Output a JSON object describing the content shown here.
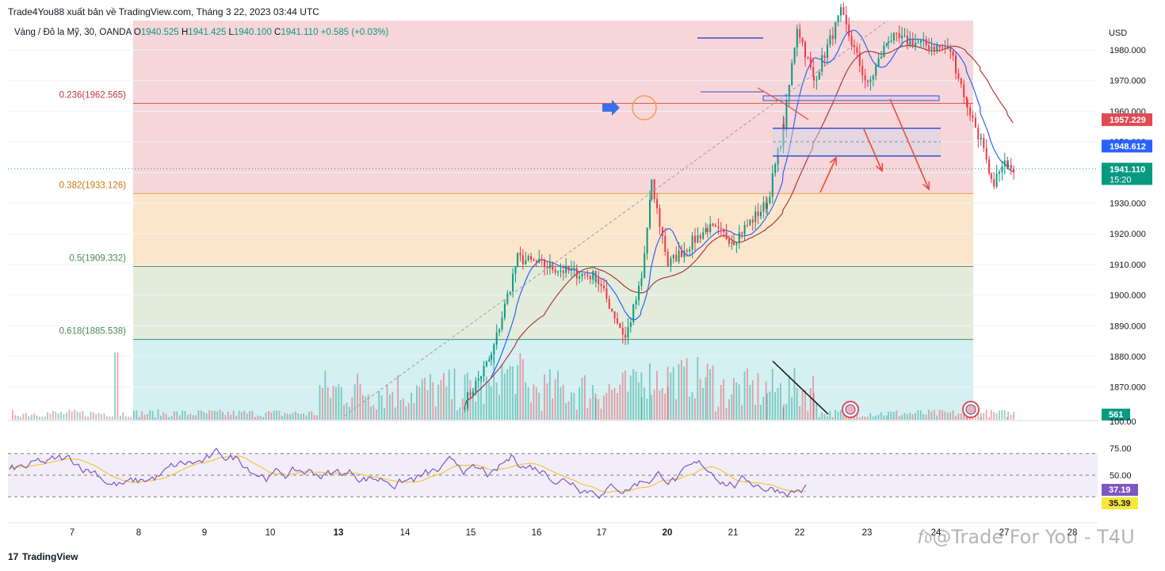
{
  "header": {
    "publisher": "Trade4You88 xuất bản về TradingView.com, Tháng 3 22, 2023 03:44 UTC",
    "symbol": "Vàng / Đô la Mỹ, 30, OANDA",
    "o_label": "O",
    "o": "1940.525",
    "h_label": "H",
    "h": "1941.425",
    "l_label": "L",
    "l": "1940.100",
    "c_label": "C",
    "c": "1941.110",
    "change": "+0.585 (+0.03%)"
  },
  "brand": {
    "logo": "17",
    "name": "TradingView"
  },
  "watermark": "𝑓𝔡@Trade For You - T4U",
  "colors": {
    "up": "#089981",
    "down": "#f23645",
    "ma_fast": "#2962ff",
    "ma_slow": "#b2383b",
    "rsi": "#7e57c2",
    "rsi_ma": "#f5c542",
    "arrow": "#f04b3c",
    "line_blue": "#3750d8"
  },
  "chart_data": [
    {
      "type": "candlestick",
      "instrument": "XAU/USD 30m OANDA",
      "ylabel": "USD",
      "ylim": [
        1860,
        1990
      ],
      "y_ticks": [
        1870,
        1880,
        1890,
        1900,
        1910,
        1920,
        1930,
        1940,
        1950,
        1960,
        1970,
        1980
      ],
      "y_tick_labels": [
        "1870.000",
        "1880.000",
        "1890.000",
        "1900.000",
        "1910.000",
        "1920.000",
        "1930.000",
        "1940.000",
        "1950.000",
        "1960.000",
        "1970.000",
        "1980.000"
      ],
      "x_ticks": [
        {
          "label": "7",
          "day": 7
        },
        {
          "label": "8",
          "day": 8
        },
        {
          "label": "9",
          "day": 9
        },
        {
          "label": "10",
          "day": 10
        },
        {
          "label": "13",
          "day": 13
        },
        {
          "label": "14",
          "day": 14
        },
        {
          "label": "15",
          "day": 15
        },
        {
          "label": "16",
          "day": 16
        },
        {
          "label": "17",
          "day": 17
        },
        {
          "label": "20",
          "day": 20
        },
        {
          "label": "21",
          "day": 21
        },
        {
          "label": "22",
          "day": 22
        },
        {
          "label": "23",
          "day": 23
        },
        {
          "label": "24",
          "day": 24
        },
        {
          "label": "27",
          "day": 27
        },
        {
          "label": "28",
          "day": 28
        }
      ],
      "fib_levels": [
        {
          "label": "0.236(1962.565)",
          "value": 1962.565,
          "zone_color": "#f6d6d8"
        },
        {
          "label": "0.382(1933.126)",
          "value": 1933.126,
          "zone_color": "#fbe6cc"
        },
        {
          "label": "0.5(1909.332)",
          "value": 1909.332,
          "zone_color": "#e3ecdb"
        },
        {
          "label": "0.618(1885.538)",
          "value": 1885.538,
          "zone_color": "#d9ebe6"
        }
      ],
      "fib_top_zone_color": "#f6d6d8",
      "fib_bottom_zone_color": "#d4f0f2",
      "price_badges": [
        {
          "value": 1957.229,
          "label": "1957.229",
          "color": "#e04a54"
        },
        {
          "value": 1948.612,
          "label": "1948.612",
          "color": "#2962ff"
        },
        {
          "value": 1941.11,
          "label": "1941.110",
          "sub": "15:20",
          "color": "#089981"
        }
      ],
      "volume_badge": "561",
      "last_price": 1941.11,
      "key_points": [
        {
          "day": 12.9,
          "price": 1865
        },
        {
          "day": 13.3,
          "price": 1880
        },
        {
          "day": 13.7,
          "price": 1912
        },
        {
          "day": 14.4,
          "price": 1908
        },
        {
          "day": 14.9,
          "price": 1906
        },
        {
          "day": 15.35,
          "price": 1886
        },
        {
          "day": 15.6,
          "price": 1905
        },
        {
          "day": 15.75,
          "price": 1936
        },
        {
          "day": 16.0,
          "price": 1910
        },
        {
          "day": 16.6,
          "price": 1922
        },
        {
          "day": 17.0,
          "price": 1918
        },
        {
          "day": 17.5,
          "price": 1930
        },
        {
          "day": 17.75,
          "price": 1955
        },
        {
          "day": 17.95,
          "price": 1988
        },
        {
          "day": 18.2,
          "price": 1970
        },
        {
          "day": 18.6,
          "price": 1992
        },
        {
          "day": 19.0,
          "price": 1968
        },
        {
          "day": 19.3,
          "price": 1984
        },
        {
          "day": 20.2,
          "price": 1980
        },
        {
          "day": 20.45,
          "price": 1962
        },
        {
          "day": 20.65,
          "price": 1950
        },
        {
          "day": 20.8,
          "price": 1936
        },
        {
          "day": 21.05,
          "price": 1944
        },
        {
          "day": 21.15,
          "price": 1941
        }
      ]
    },
    {
      "type": "line",
      "name": "RSI",
      "ylim": [
        10,
        100
      ],
      "y_ticks": [
        50,
        75,
        100
      ],
      "y_tick_labels": [
        "50.00",
        "75.00",
        "100.00"
      ],
      "band": [
        30,
        70
      ],
      "badges": [
        {
          "label": "37.19",
          "color": "#7e57c2"
        },
        {
          "label": "35.39",
          "color": "#f7e83a"
        }
      ]
    }
  ]
}
